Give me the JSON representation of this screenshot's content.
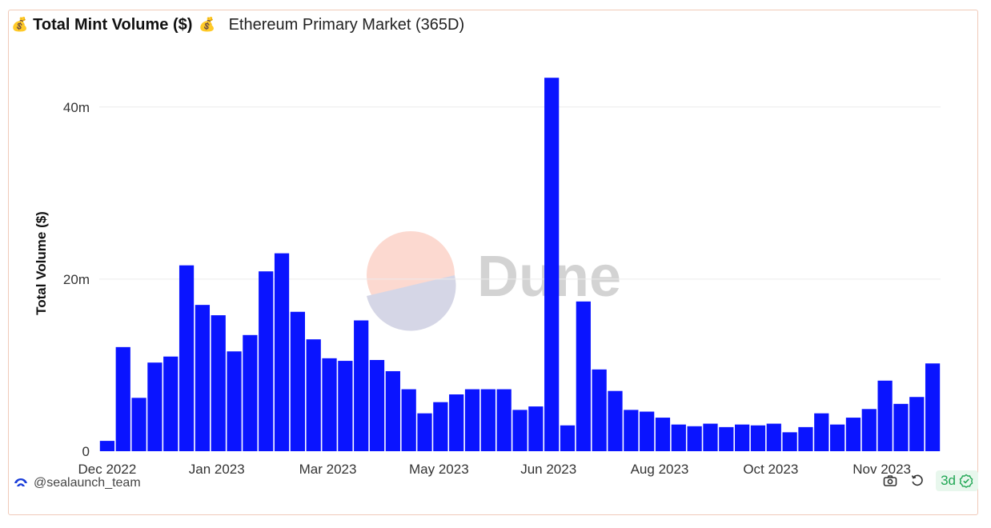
{
  "header": {
    "emoji_left": "💰",
    "title": "Total Mint Volume ($)",
    "emoji_right": "💰",
    "subtitle": "Ethereum Primary Market (365D)"
  },
  "watermark": {
    "text": "Dune"
  },
  "footer": {
    "username": "@sealaunch_team",
    "refresh_label": "3d",
    "colors": {
      "refresh_green": "#1fa653",
      "brand_blue": "#1a3dd9"
    }
  },
  "chart_data": {
    "type": "bar",
    "title": "Total Mint Volume ($)",
    "ylabel": "Total Volume ($)",
    "xlabel": "",
    "ylim": [
      0,
      45000000
    ],
    "yticks": [
      {
        "value": 0,
        "label": "0"
      },
      {
        "value": 20000000,
        "label": "20m"
      },
      {
        "value": 40000000,
        "label": "40m"
      }
    ],
    "xticks": [
      "Dec 2022",
      "Jan 2023",
      "Mar 2023",
      "May 2023",
      "Jun 2023",
      "Aug 2023",
      "Oct 2023",
      "Nov 2023"
    ],
    "xtick_bar_index": [
      0.5,
      7.4,
      14.4,
      21.4,
      28.3,
      35.3,
      42.3,
      49.3
    ],
    "bar_color": "#0a14ff",
    "grid": true,
    "legend": "none",
    "values": [
      1200000,
      12100000,
      6200000,
      10300000,
      11000000,
      21600000,
      17000000,
      15800000,
      11600000,
      13500000,
      20900000,
      23000000,
      16200000,
      13000000,
      10800000,
      10500000,
      15200000,
      10600000,
      9300000,
      7200000,
      4400000,
      5700000,
      6600000,
      7200000,
      7200000,
      7200000,
      4800000,
      5200000,
      43400000,
      3000000,
      17400000,
      9500000,
      7000000,
      4800000,
      4600000,
      3900000,
      3100000,
      2900000,
      3200000,
      2800000,
      3100000,
      3000000,
      3200000,
      2200000,
      2800000,
      4400000,
      3100000,
      3900000,
      4900000,
      8200000,
      5500000,
      6300000,
      10200000
    ]
  }
}
